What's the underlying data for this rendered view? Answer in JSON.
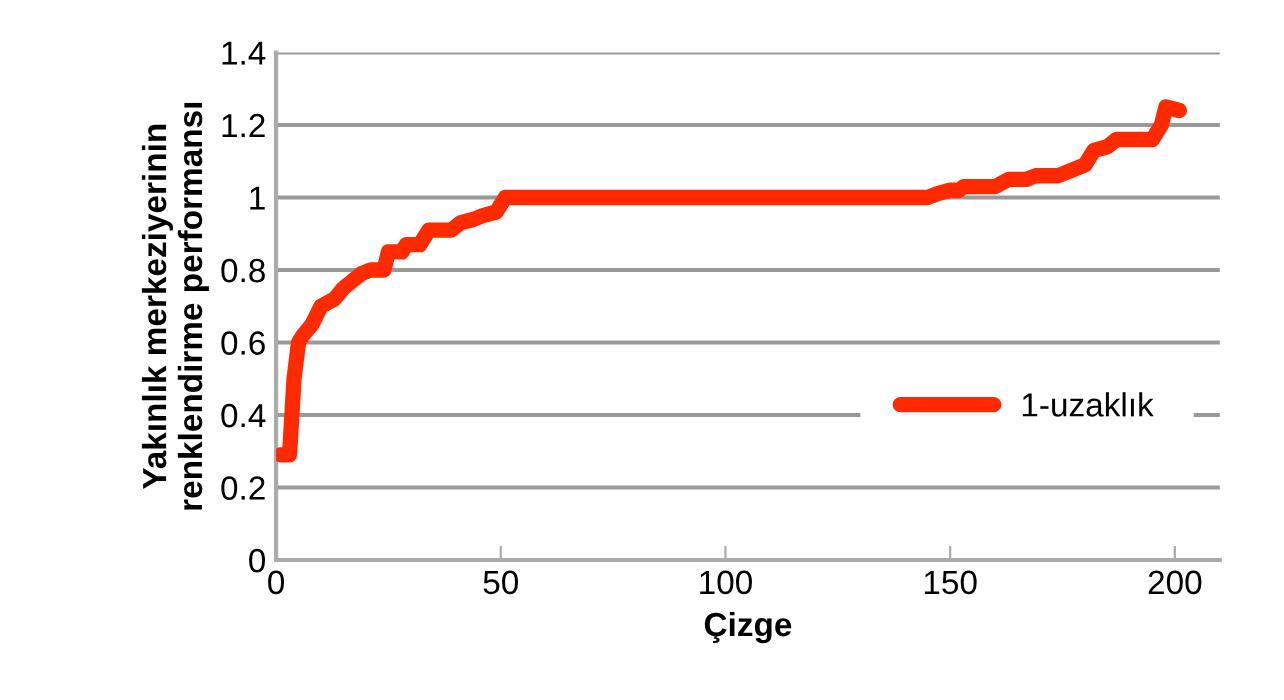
{
  "chart_data": {
    "type": "line",
    "xlabel": "Çizge",
    "ylabel": "Yakınlık merkeziyerinin\nrenklendirme performansı",
    "xlim": [
      0,
      210
    ],
    "xticks": [
      0,
      50,
      100,
      150,
      200
    ],
    "ylim": [
      0,
      1.4
    ],
    "yticks": [
      0,
      0.2,
      0.4,
      0.6,
      0.8,
      1,
      1.2,
      1.4
    ],
    "grid": "y",
    "legend": "right",
    "marker": "none",
    "line_style": "solid",
    "series": [
      {
        "name": "1-uzaklık",
        "color": "#ff2a00",
        "x": [
          1,
          3,
          4,
          5,
          6,
          8,
          10,
          13,
          15,
          17,
          19,
          21,
          24,
          25,
          28,
          29,
          32,
          34,
          39,
          41,
          44,
          46,
          49,
          51,
          145,
          147,
          150,
          152,
          153,
          160,
          163,
          167,
          169,
          174,
          176,
          180,
          182,
          185,
          187,
          195,
          196,
          197,
          198,
          201
        ],
        "values": [
          0.29,
          0.29,
          0.5,
          0.6,
          0.62,
          0.65,
          0.7,
          0.72,
          0.75,
          0.77,
          0.79,
          0.8,
          0.8,
          0.85,
          0.85,
          0.87,
          0.87,
          0.91,
          0.91,
          0.93,
          0.94,
          0.95,
          0.96,
          1.0,
          1.0,
          1.01,
          1.02,
          1.02,
          1.03,
          1.03,
          1.05,
          1.05,
          1.06,
          1.06,
          1.07,
          1.09,
          1.13,
          1.14,
          1.16,
          1.16,
          1.18,
          1.2,
          1.25,
          1.24
        ]
      }
    ]
  }
}
